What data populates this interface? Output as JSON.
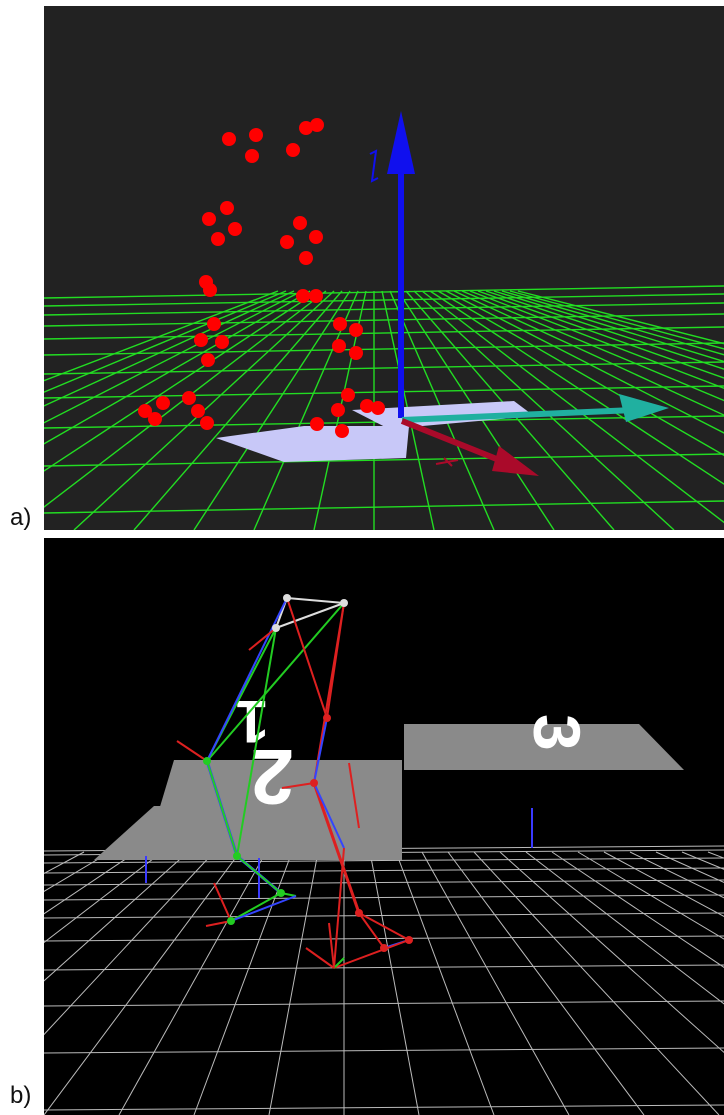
{
  "labels": {
    "a": "a)",
    "b": "b)"
  },
  "panel_a": {
    "background": "#222222",
    "grid_color": "#22dd22",
    "marker_color": "#ff0000",
    "axis_colors": {
      "z": "#1010ee",
      "y": "#20b0a0",
      "x": "#aa0a2a"
    },
    "footprint_color": "#c8c8f8"
  },
  "panel_b": {
    "background": "#000000",
    "grid_color": "#bbbbbb",
    "left_leg_color": "#22cc22",
    "right_leg_color": "#dd2020",
    "pelvis_color": "#dddddd",
    "plate_color": "#888888",
    "plate_numbers": [
      "1",
      "2",
      "3"
    ]
  }
}
